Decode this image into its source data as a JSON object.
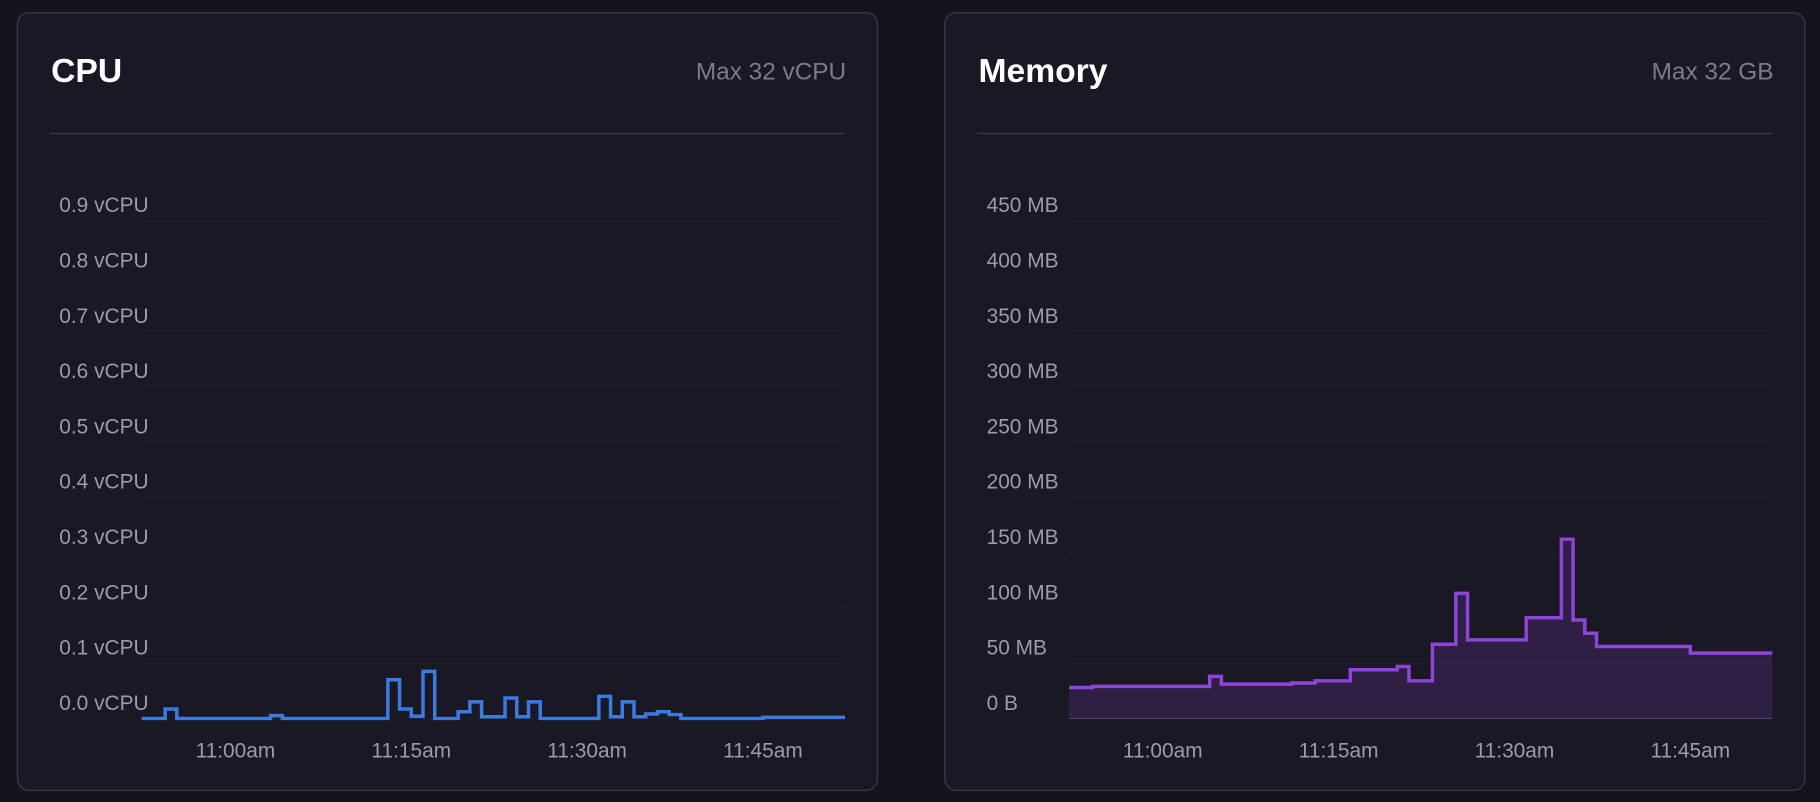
{
  "chart_data": [
    {
      "type": "line",
      "step": true,
      "area": false,
      "title": "CPU",
      "subtitle": "Max 32 vCPU",
      "color": "#3b7be0",
      "grid": true,
      "x": [
        "10:52",
        "10:54",
        "10:55",
        "11:03",
        "11:04",
        "11:13",
        "11:14",
        "11:15",
        "11:16",
        "11:17",
        "11:19",
        "11:20",
        "11:21",
        "11:23",
        "11:24",
        "11:25",
        "11:26",
        "11:31",
        "11:32",
        "11:33",
        "11:34",
        "11:35",
        "11:36",
        "11:37",
        "11:38",
        "11:45",
        "11:52"
      ],
      "values": [
        0,
        0.017,
        0,
        0.005,
        0,
        0.07,
        0.017,
        0.004,
        0.085,
        0,
        0.012,
        0.03,
        0.003,
        0.037,
        0.003,
        0.03,
        0,
        0.04,
        0.003,
        0.03,
        0.003,
        0.008,
        0.012,
        0.007,
        0,
        0.002,
        0.002
      ],
      "xlim": [
        "10:52",
        "11:52"
      ],
      "xticks": [
        {
          "value": "11:00",
          "label": "11:00am"
        },
        {
          "value": "11:15",
          "label": "11:15am"
        },
        {
          "value": "11:30",
          "label": "11:30am"
        },
        {
          "value": "11:45",
          "label": "11:45am"
        }
      ],
      "ylim": [
        0,
        0.9
      ],
      "yticks": [
        {
          "value": 0,
          "label": "0.0 vCPU"
        },
        {
          "value": 0.1,
          "label": "0.1 vCPU"
        },
        {
          "value": 0.2,
          "label": "0.2 vCPU"
        },
        {
          "value": 0.3,
          "label": "0.3 vCPU"
        },
        {
          "value": 0.4,
          "label": "0.4 vCPU"
        },
        {
          "value": 0.5,
          "label": "0.5 vCPU"
        },
        {
          "value": 0.6,
          "label": "0.6 vCPU"
        },
        {
          "value": 0.7,
          "label": "0.7 vCPU"
        },
        {
          "value": 0.8,
          "label": "0.8 vCPU"
        },
        {
          "value": 0.9,
          "label": "0.9 vCPU"
        }
      ]
    },
    {
      "type": "line",
      "step": true,
      "area": true,
      "title": "Memory",
      "subtitle": "Max 32 GB",
      "color": "#8e44d6",
      "grid": true,
      "x": [
        "10:52",
        "10:54",
        "11:04",
        "11:05",
        "11:11",
        "11:13",
        "11:16",
        "11:20",
        "11:21",
        "11:23",
        "11:25",
        "11:26",
        "11:31",
        "11:34",
        "11:35",
        "11:36",
        "11:37",
        "11:45",
        "11:52"
      ],
      "values": [
        28,
        29,
        38,
        31,
        32,
        34,
        44,
        47,
        34,
        67,
        113,
        71,
        91,
        162,
        89,
        77,
        65,
        59,
        59
      ],
      "xlim": [
        "10:52",
        "11:52"
      ],
      "xticks": [
        {
          "value": "11:00",
          "label": "11:00am"
        },
        {
          "value": "11:15",
          "label": "11:15am"
        },
        {
          "value": "11:30",
          "label": "11:30am"
        },
        {
          "value": "11:45",
          "label": "11:45am"
        }
      ],
      "ylim": [
        0,
        450
      ],
      "yticks": [
        {
          "value": 0,
          "label": "0 B"
        },
        {
          "value": 50,
          "label": "50 MB"
        },
        {
          "value": 100,
          "label": "100 MB"
        },
        {
          "value": 150,
          "label": "150 MB"
        },
        {
          "value": 200,
          "label": "200 MB"
        },
        {
          "value": 250,
          "label": "250 MB"
        },
        {
          "value": 300,
          "label": "300 MB"
        },
        {
          "value": 350,
          "label": "350 MB"
        },
        {
          "value": 400,
          "label": "400 MB"
        },
        {
          "value": 450,
          "label": "450 MB"
        }
      ]
    }
  ]
}
